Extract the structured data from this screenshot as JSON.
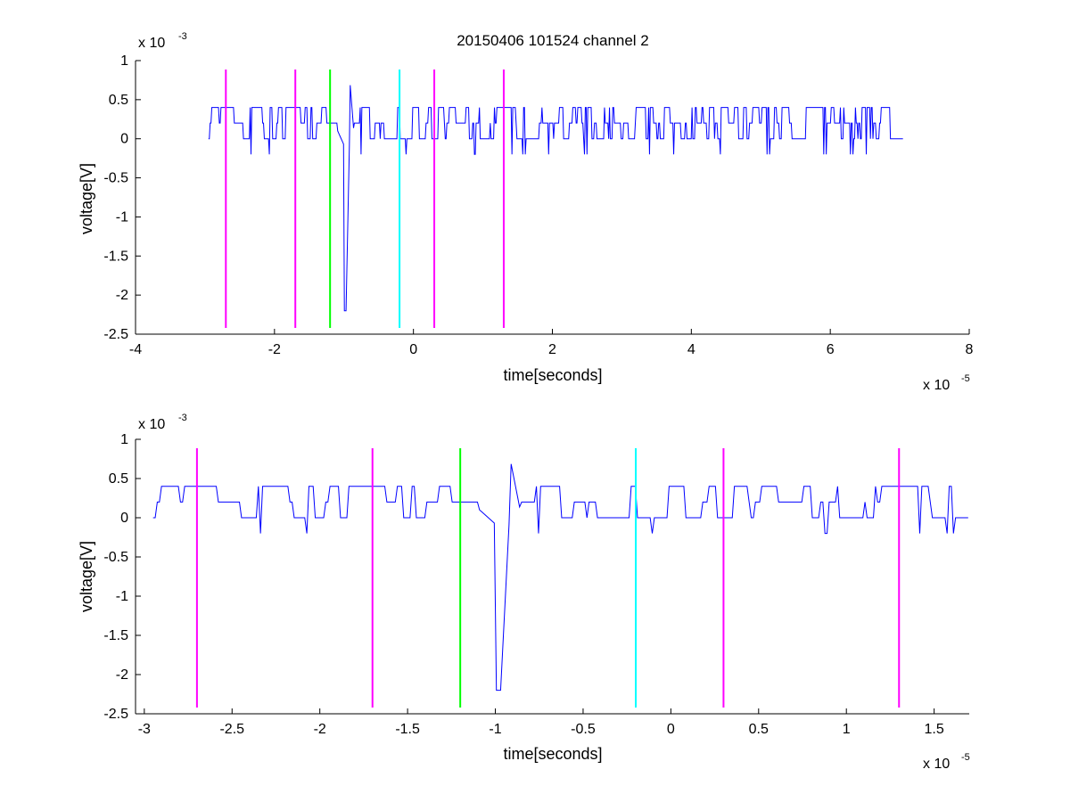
{
  "colors": {
    "signal": "#0000ff",
    "magenta": "#ff00ff",
    "green": "#00ff00",
    "cyan": "#00ffff",
    "axis": "#000000"
  },
  "chart_data": [
    {
      "type": "line",
      "title": "20150406 101524 channel 2",
      "xlabel": "time[seconds]",
      "ylabel": "voltage[V]",
      "x_exponent": "x 10",
      "x_exponent_power": "-5",
      "y_exponent": "x 10",
      "y_exponent_power": "-3",
      "xlim": [
        -4,
        8
      ],
      "ylim": [
        -2.5,
        1
      ],
      "xticks": [
        -4,
        -2,
        0,
        2,
        4,
        6,
        8
      ],
      "xtick_labels": [
        "-4",
        "-2",
        "0",
        "2",
        "4",
        "6",
        "8"
      ],
      "yticks": [
        -2.5,
        -2,
        -1.5,
        -1,
        -0.5,
        0,
        0.5,
        1
      ],
      "ytick_labels": [
        "-2.5",
        "-2",
        "-1.5",
        "-1",
        "-0.5",
        "0",
        "0.5",
        "1"
      ],
      "grid": false,
      "signal": {
        "x_start": -2.95,
        "x_end": 7.05,
        "levels": [
          0,
          0.2,
          0.4
        ],
        "spike": {
          "x": -0.97,
          "min": -2.2,
          "max": 0.8
        },
        "noise_dips": [
          -0.2
        ]
      },
      "markers": [
        {
          "x": -2.7,
          "color": "magenta"
        },
        {
          "x": -1.7,
          "color": "magenta"
        },
        {
          "x": -1.2,
          "color": "green"
        },
        {
          "x": -0.2,
          "color": "cyan"
        },
        {
          "x": 0.3,
          "color": "magenta"
        },
        {
          "x": 1.3,
          "color": "magenta"
        }
      ]
    },
    {
      "type": "line",
      "title": "",
      "xlabel": "time[seconds]",
      "ylabel": "voltage[V]",
      "x_exponent": "x 10",
      "x_exponent_power": "-5",
      "y_exponent": "x 10",
      "y_exponent_power": "-3",
      "xlim": [
        -3.05,
        1.7
      ],
      "ylim": [
        -2.5,
        1
      ],
      "xticks": [
        -3,
        -2.5,
        -2,
        -1.5,
        -1,
        -0.5,
        0,
        0.5,
        1,
        1.5
      ],
      "xtick_labels": [
        "-3",
        "-2.5",
        "-2",
        "-1.5",
        "-1",
        "-0.5",
        "0",
        "0.5",
        "1",
        "1.5"
      ],
      "yticks": [
        -2.5,
        -2,
        -1.5,
        -1,
        -0.5,
        0,
        0.5,
        1
      ],
      "ytick_labels": [
        "-2.5",
        "-2",
        "-1.5",
        "-1",
        "-0.5",
        "0",
        "0.5",
        "1"
      ],
      "grid": false,
      "signal": {
        "x_start": -2.95,
        "x_end": 1.7,
        "levels": [
          0,
          0.2,
          0.4
        ],
        "spike": {
          "x": -0.97,
          "min": -2.2,
          "max": 0.8
        },
        "noise_dips": [
          -0.2
        ]
      },
      "markers": [
        {
          "x": -2.7,
          "color": "magenta"
        },
        {
          "x": -1.7,
          "color": "magenta"
        },
        {
          "x": -1.2,
          "color": "green"
        },
        {
          "x": -0.2,
          "color": "cyan"
        },
        {
          "x": 0.3,
          "color": "magenta"
        },
        {
          "x": 1.3,
          "color": "magenta"
        }
      ]
    }
  ]
}
